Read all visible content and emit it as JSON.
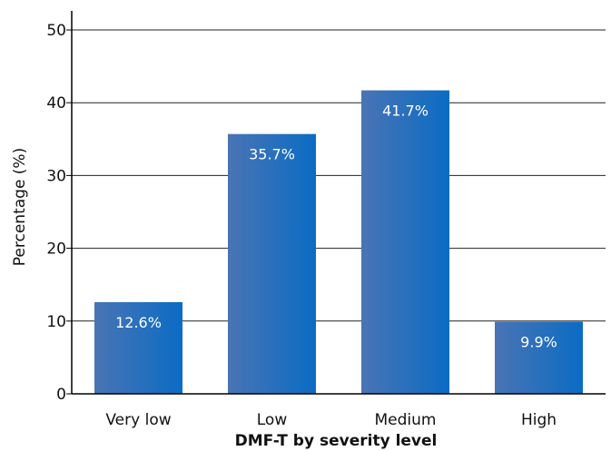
{
  "chart_data": {
    "type": "bar",
    "categories": [
      "Very low",
      "Low",
      "Medium",
      "High"
    ],
    "values": [
      12.6,
      35.7,
      41.7,
      9.9
    ],
    "data_labels": [
      "12.6%",
      "35.7%",
      "41.7%",
      "9.9%"
    ],
    "ylabel": "Percentage (%)",
    "xlabel": "DMF-T by severity level",
    "ylim": [
      0,
      50
    ],
    "yticks": [
      0,
      10,
      20,
      30,
      40,
      50
    ],
    "grid": true,
    "legend": "none",
    "colors": {
      "bar_light": "#4a74b4",
      "bar_dark": "#0a6cc4",
      "grid": "#222222",
      "axis": "#000000"
    }
  }
}
